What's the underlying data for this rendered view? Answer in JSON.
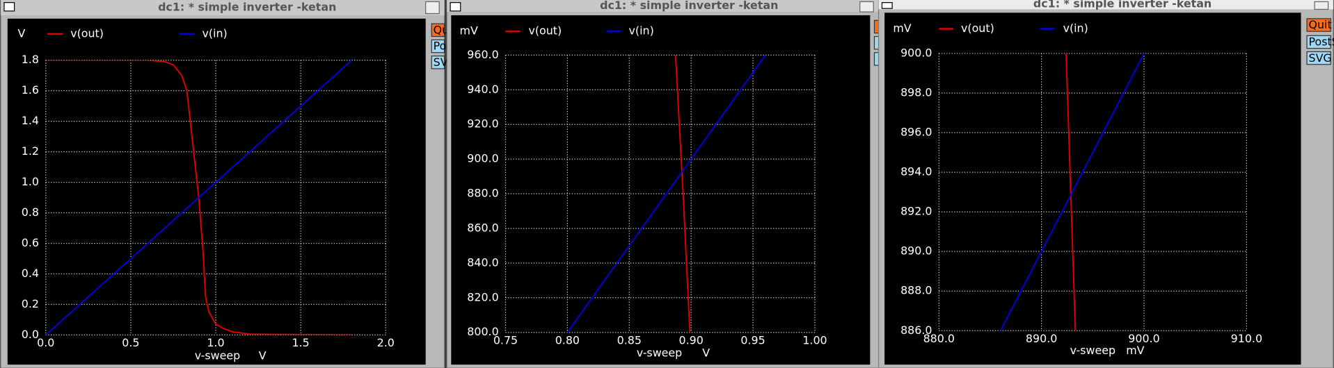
{
  "windows": [
    {
      "title": "dc1: * simple inverter -ketan",
      "buttons": [
        "Qu",
        "Po",
        "SV"
      ]
    },
    {
      "title": "dc1: * simple inverter -ketan"
    },
    {
      "title": "dc1: * simple inverter -ketan",
      "buttons": [
        "Quit",
        "PostS",
        "SVG"
      ]
    }
  ],
  "chart_data": [
    {
      "type": "line",
      "y_label": "V",
      "x_label": "v-sweep",
      "x_unit": "V",
      "grid": true,
      "x": [
        0,
        0.6,
        0.7,
        0.75,
        0.8,
        0.83,
        0.85,
        0.875,
        0.9,
        0.925,
        0.94,
        0.96,
        1.0,
        1.05,
        1.1,
        1.2,
        1.8
      ],
      "series": [
        {
          "name": "v(out)",
          "color": "#e00000",
          "values": [
            1.8,
            1.8,
            1.79,
            1.77,
            1.7,
            1.6,
            1.4,
            1.15,
            0.9,
            0.55,
            0.25,
            0.15,
            0.07,
            0.04,
            0.02,
            0.005,
            0
          ]
        },
        {
          "name": "v(in)",
          "color": "#0000e0",
          "values": [
            0,
            0.6,
            0.7,
            0.75,
            0.8,
            0.83,
            0.85,
            0.875,
            0.9,
            0.925,
            0.94,
            0.96,
            1.0,
            1.05,
            1.1,
            1.2,
            1.8
          ]
        }
      ],
      "xlim": [
        0,
        2.0
      ],
      "xticks": [
        {
          "value": 0,
          "label": "0.0"
        },
        0.5,
        {
          "value": 1,
          "label": "1.0"
        },
        1.5,
        {
          "value": 2,
          "label": "2.0"
        }
      ],
      "ylim": [
        0,
        1.8
      ],
      "yticks": [
        {
          "value": 0,
          "label": "0.0"
        },
        0.2,
        0.4,
        0.6,
        0.8,
        {
          "value": 1,
          "label": "1.0"
        },
        1.2,
        1.4,
        1.6,
        1.8
      ]
    },
    {
      "type": "line",
      "y_label": "mV",
      "x_label": "v-sweep",
      "x_unit": "V",
      "grid": true,
      "x": [
        0.8,
        0.8874,
        0.8935,
        0.899,
        0.96
      ],
      "series": [
        {
          "name": "v(out)",
          "color": "#e00000",
          "values": [
            null,
            960,
            880,
            800,
            null
          ]
        },
        {
          "name": "v(in)",
          "color": "#0000e0",
          "values": [
            800,
            887.4,
            893.5,
            899,
            960
          ]
        }
      ],
      "xlim": [
        0.75,
        1.0
      ],
      "xticks": [
        0.75,
        {
          "value": 0.8,
          "label": "0.80"
        },
        0.85,
        {
          "value": 0.9,
          "label": "0.90"
        },
        0.95,
        {
          "value": 1,
          "label": "1.00"
        }
      ],
      "ylim": [
        800,
        960
      ],
      "yticks": [
        {
          "value": 800,
          "label": "800.0"
        },
        {
          "value": 820,
          "label": "820.0"
        },
        {
          "value": 840,
          "label": "840.0"
        },
        {
          "value": 860,
          "label": "860.0"
        },
        {
          "value": 880,
          "label": "880.0"
        },
        {
          "value": 900,
          "label": "900.0"
        },
        {
          "value": 920,
          "label": "920.0"
        },
        {
          "value": 940,
          "label": "940.0"
        },
        {
          "value": 960,
          "label": "960.0"
        }
      ]
    },
    {
      "type": "line",
      "y_label": "mV",
      "x_label": "v-sweep",
      "x_unit": "mV",
      "grid": true,
      "x": [
        886,
        892.4,
        893,
        893.3,
        900
      ],
      "series": [
        {
          "name": "v(out)",
          "color": "#e00000",
          "values": [
            null,
            900,
            890.7,
            886,
            null
          ]
        },
        {
          "name": "v(in)",
          "color": "#0000e0",
          "values": [
            886,
            892.4,
            893,
            893.3,
            900
          ]
        }
      ],
      "xlim": [
        880,
        910
      ],
      "xticks": [
        {
          "value": 880,
          "label": "880.0"
        },
        {
          "value": 890,
          "label": "890.0"
        },
        {
          "value": 900,
          "label": "900.0"
        },
        {
          "value": 910,
          "label": "910.0"
        }
      ],
      "ylim": [
        886,
        900
      ],
      "yticks": [
        {
          "value": 886,
          "label": "886.0"
        },
        {
          "value": 888,
          "label": "888.0"
        },
        {
          "value": 890,
          "label": "890.0"
        },
        {
          "value": 892,
          "label": "892.0"
        },
        {
          "value": 894,
          "label": "894.0"
        },
        {
          "value": 896,
          "label": "896.0"
        },
        {
          "value": 898,
          "label": "898.0"
        },
        {
          "value": 900,
          "label": "900.0"
        }
      ]
    }
  ]
}
